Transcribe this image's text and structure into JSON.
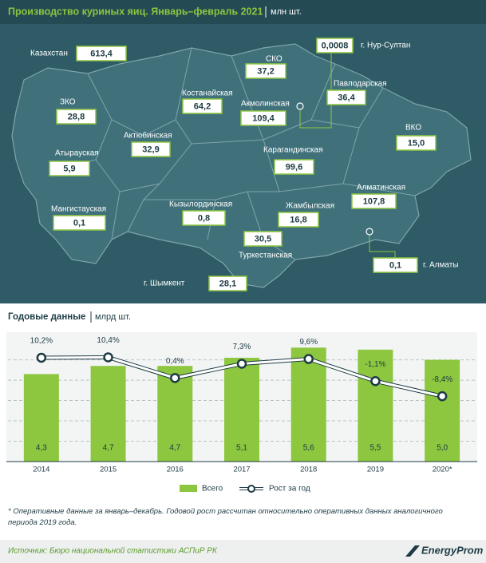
{
  "header": {
    "title": "Производство куриных яиц. Январь–февраль 2021",
    "unit": "млн шт."
  },
  "map": {
    "regions": [
      {
        "label": "Казахстан",
        "value": "613,4"
      },
      {
        "label": "СКО",
        "value": "37,2"
      },
      {
        "label": "г. Нур-Султан",
        "value": "0,0008"
      },
      {
        "label": "Павлодарская",
        "value": "36,4"
      },
      {
        "label": "Костанайская",
        "value": "64,2"
      },
      {
        "label": "Акмолинская",
        "value": "109,4"
      },
      {
        "label": "ЗКО",
        "value": "28,8"
      },
      {
        "label": "ВКО",
        "value": "15,0"
      },
      {
        "label": "Актюбинская",
        "value": "32,9"
      },
      {
        "label": "Карагандинская",
        "value": "99,6"
      },
      {
        "label": "Атырауская",
        "value": "5,9"
      },
      {
        "label": "Алматинская",
        "value": "107,8"
      },
      {
        "label": "Мангистауская",
        "value": "0,1"
      },
      {
        "label": "Кызылординская",
        "value": "0,8"
      },
      {
        "label": "Жамбылская",
        "value": "16,8"
      },
      {
        "label": "Туркестанская",
        "value": "30,5"
      },
      {
        "label": "г. Алматы",
        "value": "0,1"
      },
      {
        "label": "г. Шымкент",
        "value": "28,1"
      }
    ]
  },
  "chart_data": {
    "type": "bar",
    "title": "Годовые данные",
    "unit": "млрд шт.",
    "categories": [
      "2014",
      "2015",
      "2016",
      "2017",
      "2018",
      "2019",
      "2020*"
    ],
    "ylim": [
      0,
      6.2
    ],
    "yticks": [
      1,
      2,
      3,
      4,
      5
    ],
    "grid": true,
    "y2lim": [
      -40,
      21
    ],
    "series": [
      {
        "name": "Всего",
        "type": "bar",
        "color": "#8dc63f",
        "values": [
          4.3,
          4.7,
          4.7,
          5.1,
          5.6,
          5.5,
          5.0
        ],
        "value_labels": [
          "4,3",
          "4,7",
          "4,7",
          "5,1",
          "5,6",
          "5,5",
          "5,0"
        ]
      },
      {
        "name": "Рост за год",
        "type": "line",
        "axis": "y2",
        "color": "#ffffff",
        "values": [
          10.2,
          10.4,
          0.4,
          7.3,
          9.6,
          -1.1,
          -8.4
        ],
        "value_labels": [
          "10,2%",
          "10,4%",
          "0,4%",
          "7,3%",
          "9,6%",
          "-1,1%",
          "-8,4%"
        ]
      }
    ]
  },
  "footnote": "* Оперативные данные за январь–декабрь. Годовой рост рассчитан относительно оперативных данных аналогичного периода 2019 года.",
  "source": "Источник: Бюро национальной статистики АСПиР РК",
  "logo": "EnergyProm"
}
